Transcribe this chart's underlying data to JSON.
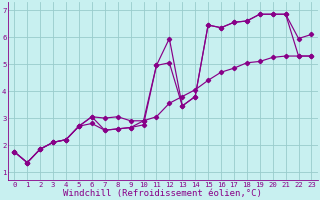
{
  "title": "",
  "xlabel": "Windchill (Refroidissement éolien,°C)",
  "ylabel": "",
  "bg_color": "#c8f0f0",
  "line_color": "#880088",
  "grid_color": "#99cccc",
  "axis_color": "#880088",
  "xlim": [
    -0.5,
    23.5
  ],
  "ylim": [
    0.7,
    7.3
  ],
  "xticks": [
    0,
    1,
    2,
    3,
    4,
    5,
    6,
    7,
    8,
    9,
    10,
    11,
    12,
    13,
    14,
    15,
    16,
    17,
    18,
    19,
    20,
    21,
    22,
    23
  ],
  "yticks": [
    1,
    2,
    3,
    4,
    5,
    6,
    7
  ],
  "line1_x": [
    0,
    1,
    2,
    3,
    4,
    5,
    6,
    7,
    8,
    9,
    10,
    11,
    12,
    13,
    14,
    15,
    16,
    17,
    18,
    19,
    20,
    21,
    22,
    23
  ],
  "line1_y": [
    1.75,
    1.35,
    1.85,
    2.1,
    2.2,
    2.7,
    3.05,
    2.55,
    2.6,
    2.65,
    2.75,
    4.95,
    5.95,
    3.45,
    3.8,
    6.45,
    6.35,
    6.55,
    6.6,
    6.85,
    6.85,
    6.85,
    5.3,
    5.3
  ],
  "line2_x": [
    0,
    1,
    2,
    3,
    4,
    5,
    6,
    7,
    8,
    9,
    10,
    11,
    12,
    13,
    14,
    15,
    16,
    17,
    18,
    19,
    20,
    21,
    22,
    23
  ],
  "line2_y": [
    1.75,
    1.35,
    1.85,
    2.1,
    2.2,
    2.7,
    2.8,
    2.55,
    2.6,
    2.65,
    2.9,
    4.95,
    5.05,
    3.45,
    3.8,
    6.45,
    6.35,
    6.55,
    6.6,
    6.85,
    6.85,
    6.85,
    5.95,
    6.1
  ],
  "line3_x": [
    0,
    1,
    2,
    3,
    4,
    5,
    6,
    7,
    8,
    9,
    10,
    11,
    12,
    13,
    14,
    15,
    16,
    17,
    18,
    19,
    20,
    21,
    22,
    23
  ],
  "line3_y": [
    1.75,
    1.35,
    1.85,
    2.1,
    2.2,
    2.7,
    3.05,
    3.0,
    3.05,
    2.9,
    2.9,
    3.05,
    3.55,
    3.8,
    4.05,
    4.4,
    4.7,
    4.85,
    5.05,
    5.1,
    5.25,
    5.3,
    5.3,
    5.3
  ],
  "marker": "D",
  "markersize": 2.2,
  "linewidth": 0.85,
  "tick_labelsize": 5.2,
  "xlabel_fontsize": 6.5
}
